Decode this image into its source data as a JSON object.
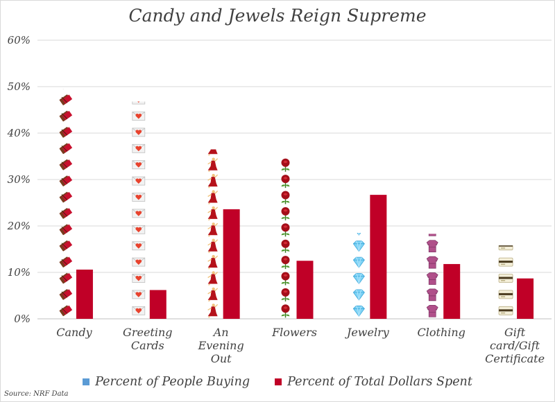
{
  "chart_data": {
    "type": "bar",
    "title": "Candy and Jewels Reign Supreme",
    "categories": [
      "Candy",
      "Greeting Cards",
      "An Evening Out",
      "Flowers",
      "Jewelry",
      "Clothing",
      "Gift card/Gift Certificate"
    ],
    "category_lines": [
      [
        "Candy"
      ],
      [
        "Greeting",
        "Cards"
      ],
      [
        "An",
        "Evening",
        "Out"
      ],
      [
        "Flowers"
      ],
      [
        "Jewelry"
      ],
      [
        "Clothing"
      ],
      [
        "Gift",
        "card/Gift",
        "Certificate"
      ]
    ],
    "series": [
      {
        "name": "Percent of People Buying",
        "values": [
          49.5,
          46.8,
          36.5,
          34.6,
          18.5,
          18.3,
          15.8
        ],
        "color": "#5b9bd5",
        "pictograph": true
      },
      {
        "name": "Percent of Total Dollars Spent",
        "values": [
          10.6,
          6.2,
          23.6,
          12.5,
          26.7,
          11.8,
          8.7
        ],
        "color": "#c00027"
      }
    ],
    "pictograph_icons": [
      "chocolate-bar-icon",
      "love-letter-icon",
      "dancer-icon",
      "rose-icon",
      "gem-icon",
      "shirt-icon",
      "gift-card-icon"
    ],
    "ylim": [
      0,
      60
    ],
    "yticks": [
      "0%",
      "10%",
      "20%",
      "30%",
      "40%",
      "50%",
      "60%"
    ],
    "grid": true,
    "legend_position": "bottom",
    "xlabel": "",
    "ylabel": "",
    "source": "Source: NRF Data"
  }
}
